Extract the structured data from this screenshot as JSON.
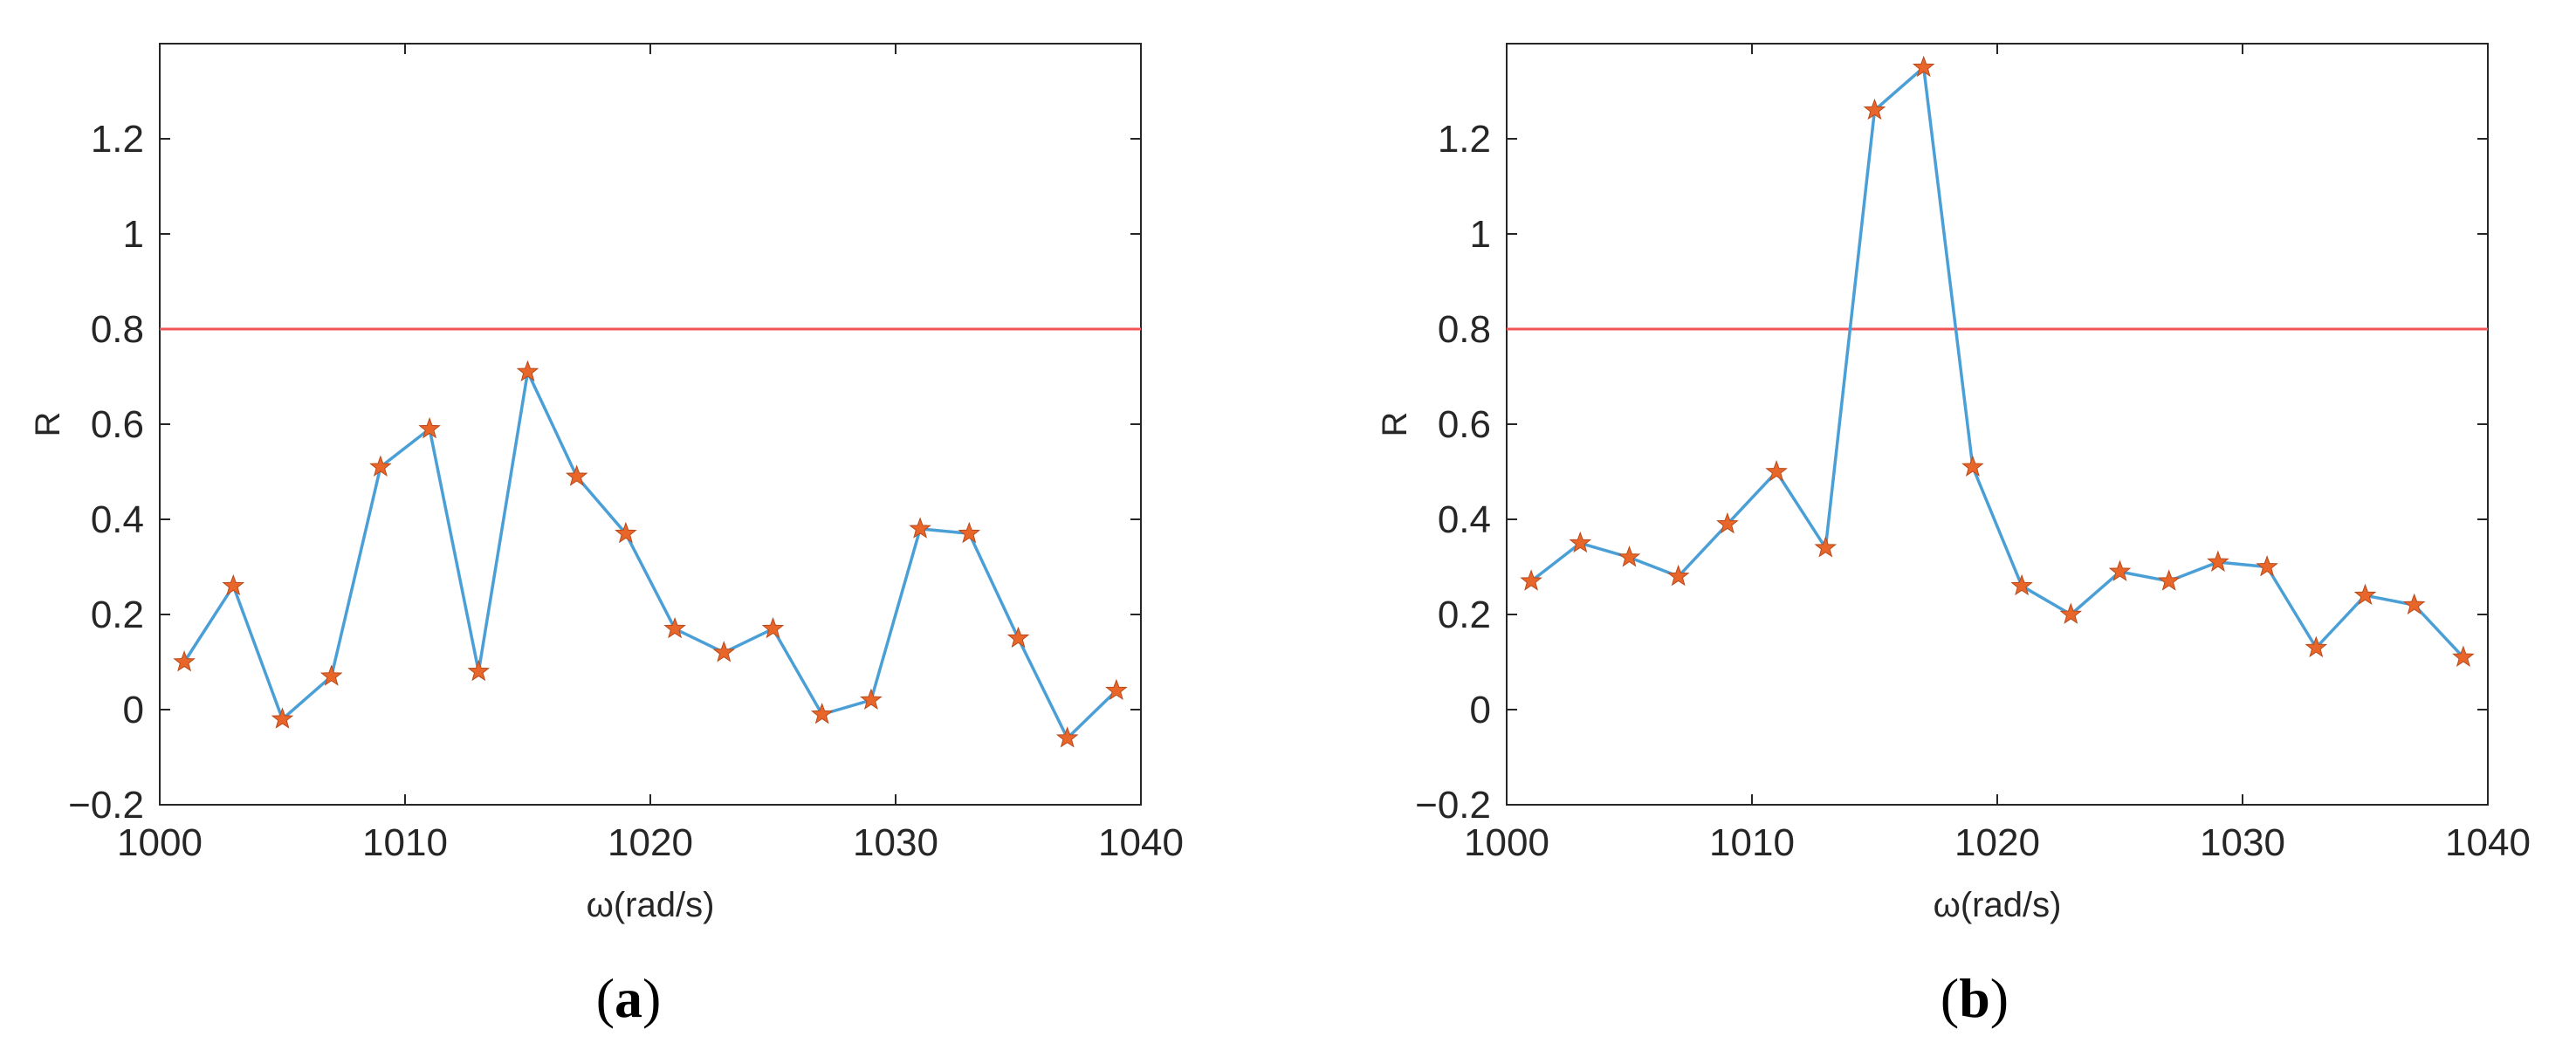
{
  "colors": {
    "line": "#4a9fd6",
    "marker": "#e8662a",
    "threshold": "#f25555",
    "axis": "#262626",
    "background": "#ffffff"
  },
  "chart_data": [
    {
      "type": "line",
      "panel_label": "a",
      "xlabel": "ω(rad/s)",
      "ylabel": "R",
      "xlim": [
        1000,
        1040
      ],
      "ylim": [
        -0.2,
        1.4
      ],
      "xticks": [
        1000,
        1010,
        1020,
        1030,
        1040
      ],
      "yticks": [
        -0.2,
        0,
        0.2,
        0.4,
        0.6,
        0.8,
        1,
        1.2
      ],
      "ytick_labels": [
        "−0.2",
        "0",
        "0.2",
        "0.4",
        "0.6",
        "0.8",
        "1",
        "1.2"
      ],
      "grid": false,
      "threshold": 0.8,
      "markers": "star",
      "series": [
        {
          "x": [
            1001,
            1003,
            1005,
            1007,
            1009,
            1011,
            1013,
            1015,
            1017,
            1019,
            1021,
            1023,
            1025,
            1027,
            1029,
            1031,
            1033,
            1035,
            1037,
            1039
          ],
          "y": [
            0.1,
            0.26,
            -0.02,
            0.07,
            0.51,
            0.59,
            0.08,
            0.71,
            0.49,
            0.37,
            0.17,
            0.12,
            0.17,
            -0.01,
            0.02,
            0.38,
            0.37,
            0.15,
            -0.06,
            0.04
          ]
        }
      ]
    },
    {
      "type": "line",
      "panel_label": "b",
      "xlabel": "ω(rad/s)",
      "ylabel": "R",
      "xlim": [
        1000,
        1040
      ],
      "ylim": [
        -0.2,
        1.4
      ],
      "xticks": [
        1000,
        1010,
        1020,
        1030,
        1040
      ],
      "yticks": [
        -0.2,
        0,
        0.2,
        0.4,
        0.6,
        0.8,
        1,
        1.2
      ],
      "ytick_labels": [
        "−0.2",
        "0",
        "0.2",
        "0.4",
        "0.6",
        "0.8",
        "1",
        "1.2"
      ],
      "grid": false,
      "threshold": 0.8,
      "markers": "star",
      "series": [
        {
          "x": [
            1001,
            1003,
            1005,
            1007,
            1009,
            1011,
            1013,
            1015,
            1017,
            1019,
            1021,
            1023,
            1025,
            1027,
            1029,
            1031,
            1033,
            1035,
            1037,
            1039
          ],
          "y": [
            0.27,
            0.35,
            0.32,
            0.28,
            0.39,
            0.5,
            0.34,
            1.26,
            1.35,
            0.51,
            0.26,
            0.2,
            0.29,
            0.27,
            0.31,
            0.3,
            0.13,
            0.24,
            0.22,
            0.11
          ]
        }
      ]
    }
  ]
}
